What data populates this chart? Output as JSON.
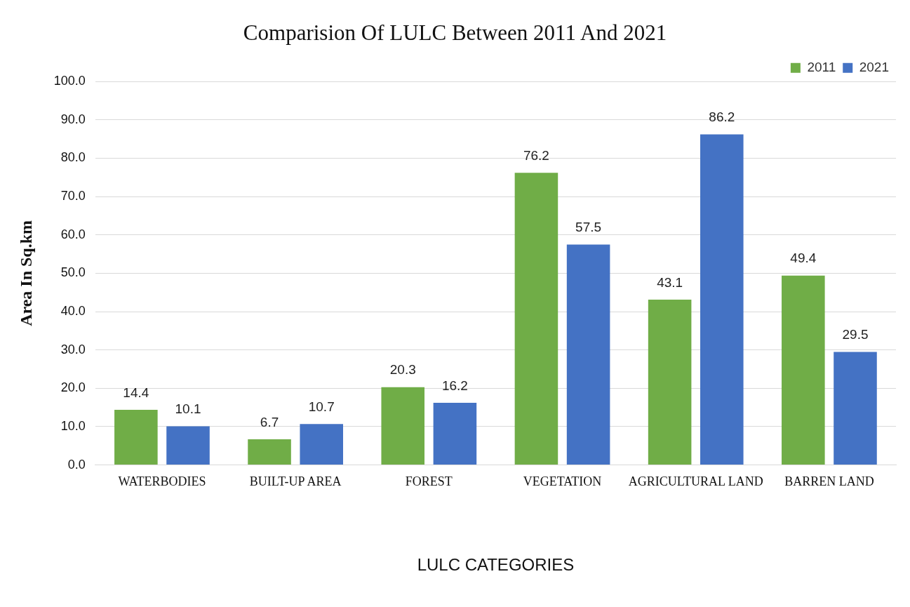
{
  "chart_data": {
    "type": "bar",
    "title": "Comparision Of LULC Between 2011 And 2021",
    "xlabel": "LULC CATEGORIES",
    "ylabel": "Area In Sq.km",
    "categories": [
      "WATERBODIES",
      "BUILT-UP AREA",
      "FOREST",
      "VEGETATION",
      "AGRICULTURAL LAND",
      "BARREN LAND"
    ],
    "series": [
      {
        "name": "2011",
        "color": "#70ad47",
        "values": [
          14.4,
          6.7,
          20.3,
          76.2,
          43.1,
          49.4
        ]
      },
      {
        "name": "2021",
        "color": "#4472c4",
        "values": [
          10.1,
          10.7,
          16.2,
          57.5,
          86.2,
          29.5
        ]
      }
    ],
    "ylim": [
      0,
      100
    ],
    "yticks": [
      {
        "value": 0,
        "label": "0.0"
      },
      {
        "value": 10,
        "label": "10.0"
      },
      {
        "value": 20,
        "label": "20.0"
      },
      {
        "value": 30,
        "label": "30.0"
      },
      {
        "value": 40,
        "label": "40.0"
      },
      {
        "value": 50,
        "label": "50.0"
      },
      {
        "value": 60,
        "label": "60.0"
      },
      {
        "value": 70,
        "label": "70.0"
      },
      {
        "value": 80,
        "label": "80.0"
      },
      {
        "value": 90,
        "label": "90.0"
      },
      {
        "value": 100,
        "label": "100.0"
      }
    ],
    "grid": "y",
    "legend": "top right",
    "data_labels": true
  }
}
